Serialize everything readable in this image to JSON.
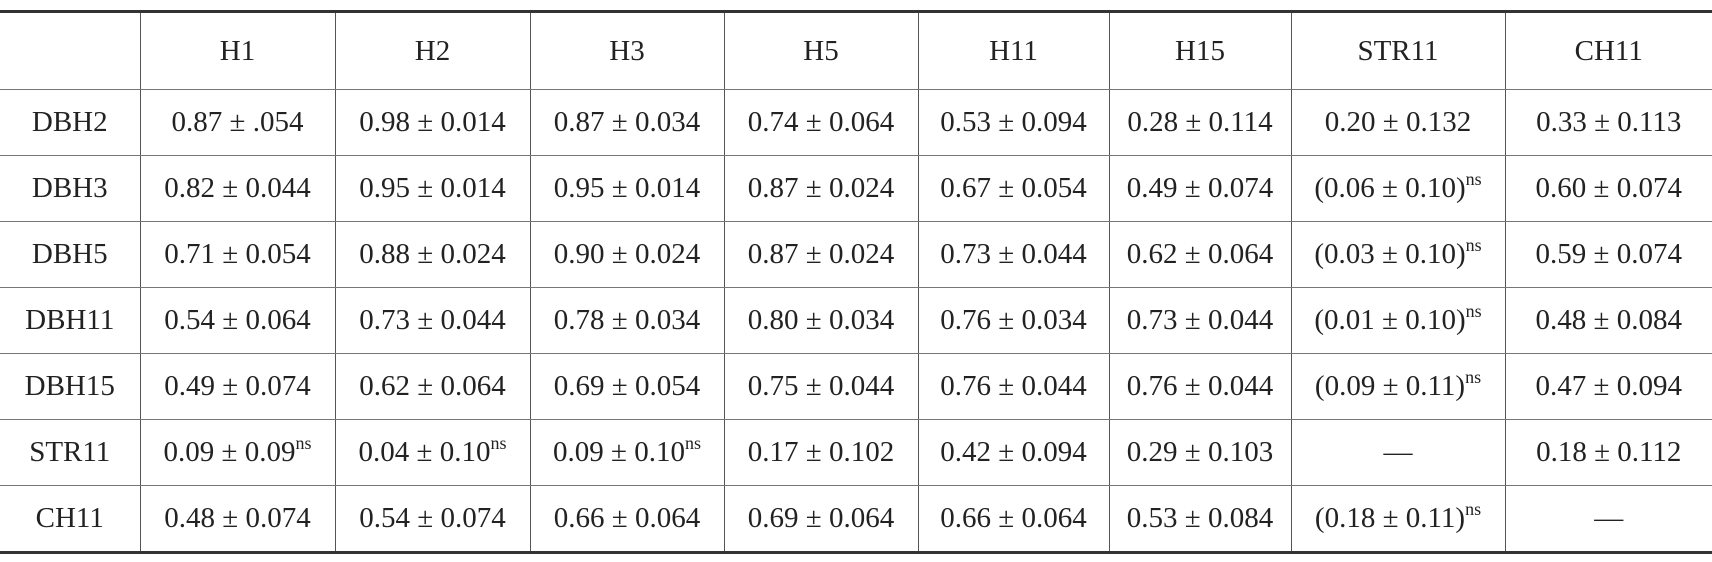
{
  "table": {
    "header": [
      "H1",
      "H2",
      "H3",
      "H5",
      "H11",
      "H15",
      "STR11",
      "CH11"
    ],
    "rows": [
      {
        "label": "DBH2",
        "cells": [
          "0.87 ± .054",
          "0.98 ± 0.014",
          "0.87 ± 0.034",
          "0.74 ± 0.064",
          "0.53 ± 0.094",
          "0.28 ± 0.114",
          "0.20 ± 0.132",
          "0.33 ± 0.113"
        ]
      },
      {
        "label": "DBH3",
        "cells": [
          "0.82 ± 0.044",
          "0.95 ± 0.014",
          "0.95 ± 0.014",
          "0.87 ± 0.024",
          "0.67 ± 0.054",
          "0.49 ± 0.074",
          {
            "text": "(0.06 ± 0.10)",
            "sup": "ns"
          },
          "0.60 ± 0.074"
        ]
      },
      {
        "label": "DBH5",
        "cells": [
          "0.71 ± 0.054",
          "0.88 ± 0.024",
          "0.90 ± 0.024",
          "0.87 ± 0.024",
          "0.73 ± 0.044",
          "0.62 ± 0.064",
          {
            "text": "(0.03 ± 0.10)",
            "sup": "ns"
          },
          "0.59 ± 0.074"
        ]
      },
      {
        "label": "DBH11",
        "cells": [
          "0.54 ± 0.064",
          "0.73 ± 0.044",
          "0.78 ± 0.034",
          "0.80 ± 0.034",
          "0.76 ± 0.034",
          "0.73 ± 0.044",
          {
            "text": "(0.01 ± 0.10)",
            "sup": "ns"
          },
          "0.48 ± 0.084"
        ]
      },
      {
        "label": "DBH15",
        "cells": [
          "0.49 ± 0.074",
          "0.62 ± 0.064",
          "0.69 ± 0.054",
          "0.75 ± 0.044",
          "0.76 ± 0.044",
          "0.76 ± 0.044",
          {
            "text": "(0.09 ± 0.11)",
            "sup": "ns"
          },
          "0.47 ± 0.094"
        ]
      },
      {
        "label": "STR11",
        "cells": [
          {
            "text": "0.09 ± 0.09",
            "sup": "ns"
          },
          {
            "text": "0.04 ± 0.10",
            "sup": "ns"
          },
          {
            "text": "0.09 ± 0.10",
            "sup": "ns"
          },
          "0.17 ± 0.102",
          "0.42 ± 0.094",
          "0.29 ± 0.103",
          "—",
          "0.18 ± 0.112"
        ]
      },
      {
        "label": "CH11",
        "cells": [
          "0.48 ± 0.074",
          "0.54 ± 0.074",
          "0.66 ± 0.064",
          "0.69 ± 0.064",
          "0.66 ± 0.064",
          "0.53 ± 0.084",
          {
            "text": "(0.18 ± 0.11)",
            "sup": "ns"
          },
          "—"
        ]
      }
    ]
  }
}
